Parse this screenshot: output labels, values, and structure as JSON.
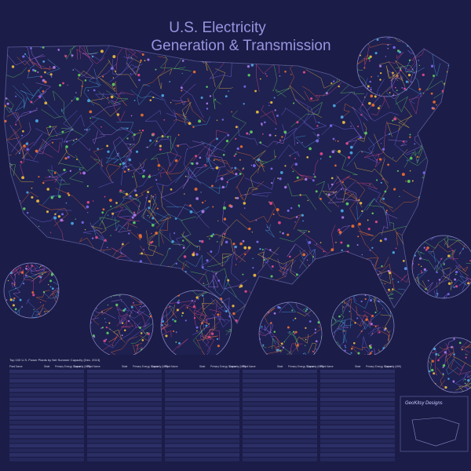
{
  "header": {
    "title": "U.S. Electricity",
    "subtitle": "Generation & Transmission"
  },
  "table": {
    "caption": "Top 100 U.S. Power Plants by Net Summer Capacity (Dec. 2013)",
    "columns": [
      "Plant Name",
      "State",
      "Primary Energy Source",
      "Capacity (MW)"
    ]
  },
  "credit": {
    "name": "GeoKitsy Designs"
  }
}
